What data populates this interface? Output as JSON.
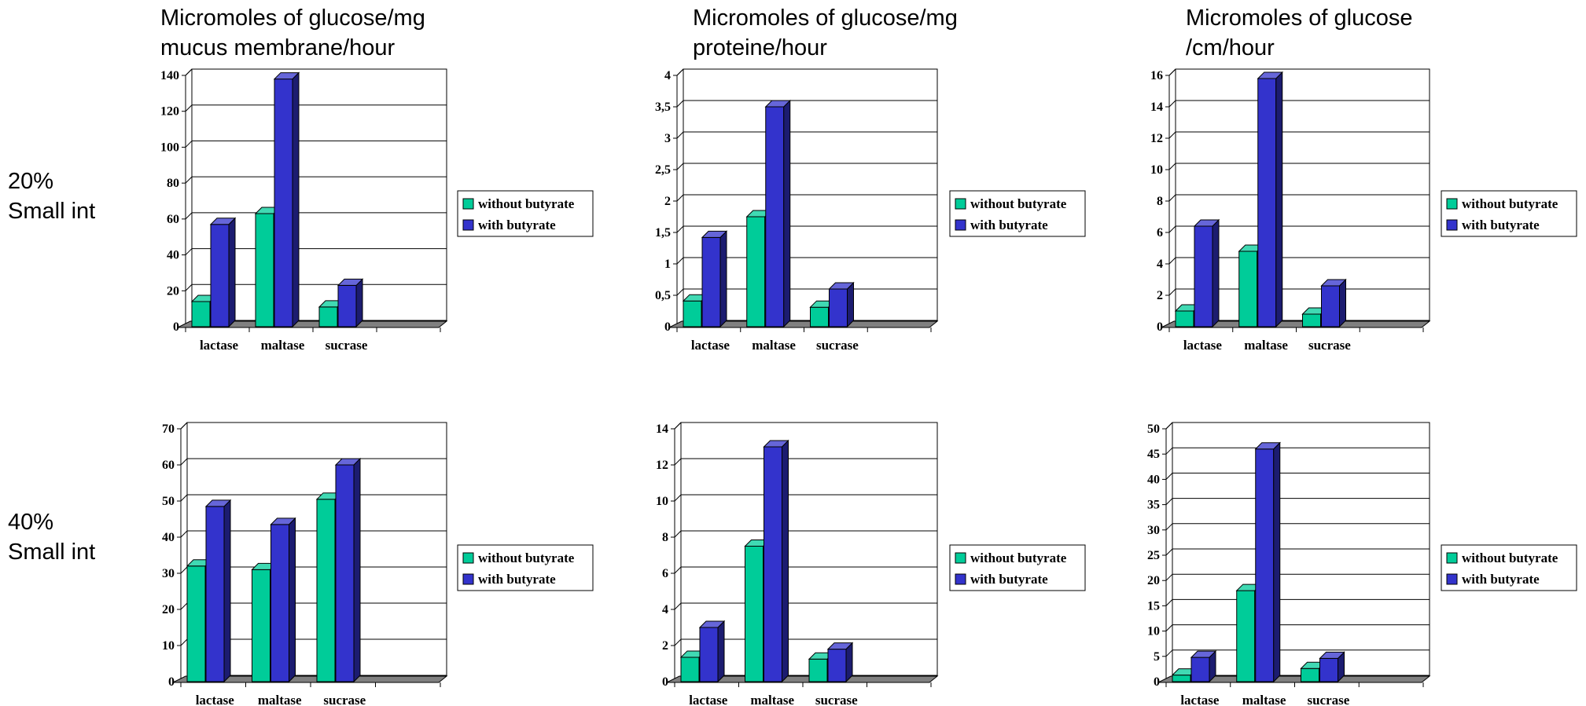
{
  "colors": {
    "without": "#00cc99",
    "with": "#3333cc",
    "floor": "#808080"
  },
  "column_titles": [
    [
      "Micromoles of glucose/mg",
      "mucus membrane/hour"
    ],
    [
      "Micromoles of glucose/mg",
      "proteine/hour"
    ],
    [
      "Micromoles of glucose",
      "/cm/hour"
    ]
  ],
  "row_labels": [
    [
      "20%",
      "Small int"
    ],
    [
      "40%",
      "Small int"
    ]
  ],
  "chart_data": [
    {
      "type": "bar",
      "categories": [
        "lactase",
        "maltase",
        "sucrase"
      ],
      "series": [
        {
          "name": "without butyrate",
          "values": [
            14,
            63,
            11
          ]
        },
        {
          "name": "with butyrate",
          "values": [
            57,
            138,
            23
          ]
        }
      ],
      "ylim": [
        0,
        140
      ],
      "yticks": [
        "0",
        "20",
        "40",
        "60",
        "80",
        "100",
        "120",
        "140"
      ],
      "grid": true,
      "legend": "right"
    },
    {
      "type": "bar",
      "categories": [
        "lactase",
        "maltase",
        "sucrase"
      ],
      "series": [
        {
          "name": "without butyrate",
          "values": [
            0.41,
            1.75,
            0.31
          ]
        },
        {
          "name": "with butyrate",
          "values": [
            1.42,
            3.5,
            0.6
          ]
        }
      ],
      "ylim": [
        0,
        4
      ],
      "yticks": [
        "0",
        "0,5",
        "1",
        "1,5",
        "2",
        "2,5",
        "3",
        "3,5",
        "4"
      ],
      "grid": true,
      "legend": "right"
    },
    {
      "type": "bar",
      "categories": [
        "lactase",
        "maltase",
        "sucrase"
      ],
      "series": [
        {
          "name": "without butyrate",
          "values": [
            1,
            4.8,
            0.8
          ]
        },
        {
          "name": "with butyrate",
          "values": [
            6.4,
            15.8,
            2.6
          ]
        }
      ],
      "ylim": [
        0,
        16
      ],
      "yticks": [
        "0",
        "2",
        "4",
        "6",
        "8",
        "10",
        "12",
        "14",
        "16"
      ],
      "grid": true,
      "legend": "right"
    },
    {
      "type": "bar",
      "categories": [
        "lactase",
        "maltase",
        "sucrase"
      ],
      "series": [
        {
          "name": "without butyrate",
          "values": [
            32,
            31,
            50.5
          ]
        },
        {
          "name": "with butyrate",
          "values": [
            48.5,
            43.5,
            60
          ]
        }
      ],
      "ylim": [
        0,
        70
      ],
      "yticks": [
        "0",
        "10",
        "20",
        "30",
        "40",
        "50",
        "60",
        "70"
      ],
      "grid": true,
      "legend": "right"
    },
    {
      "type": "bar",
      "categories": [
        "lactase",
        "maltase",
        "sucrase"
      ],
      "series": [
        {
          "name": "without butyrate",
          "values": [
            1.35,
            7.5,
            1.25
          ]
        },
        {
          "name": "with butyrate",
          "values": [
            3,
            13,
            1.8
          ]
        }
      ],
      "ylim": [
        0,
        14
      ],
      "yticks": [
        "0",
        "2",
        "4",
        "6",
        "8",
        "10",
        "12",
        "14"
      ],
      "grid": true,
      "legend": "right"
    },
    {
      "type": "bar",
      "categories": [
        "lactase",
        "maltase",
        "sucrase"
      ],
      "series": [
        {
          "name": "without butyrate",
          "values": [
            1.3,
            18,
            2.6
          ]
        },
        {
          "name": "with butyrate",
          "values": [
            4.8,
            46,
            4.6
          ]
        }
      ],
      "ylim": [
        0,
        50
      ],
      "yticks": [
        "0",
        "5",
        "10",
        "15",
        "20",
        "25",
        "30",
        "35",
        "40",
        "45",
        "50"
      ],
      "grid": true,
      "legend": "right"
    }
  ]
}
